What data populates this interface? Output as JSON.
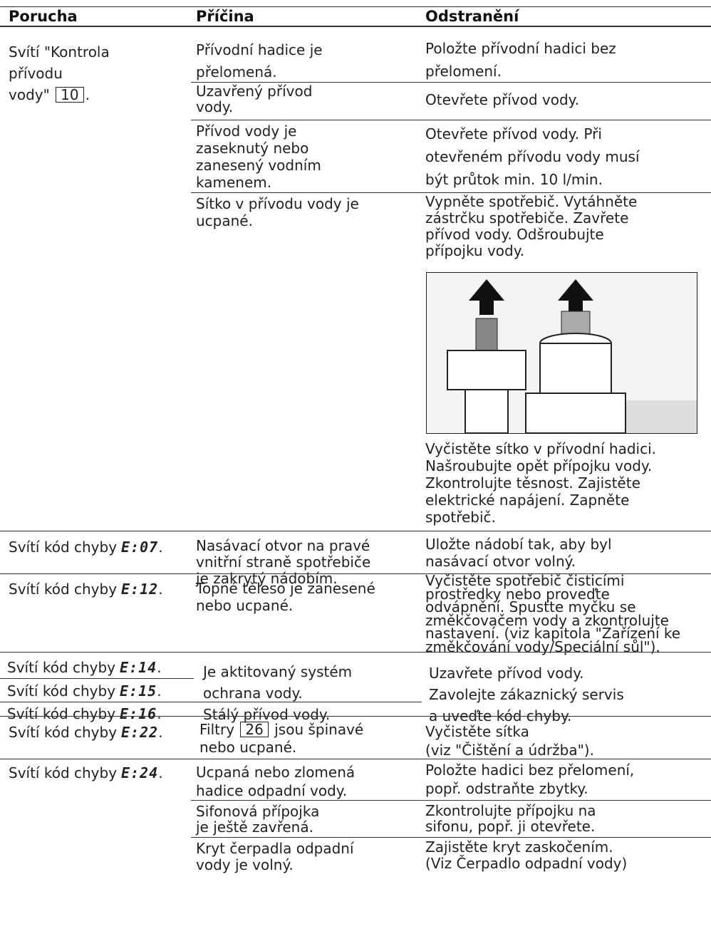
{
  "header": {
    "fault": "Porucha",
    "cause": "Příčina",
    "remedy": "Odstranění"
  },
  "rows": [
    {
      "fault": [
        "Svítí \"Kontrola",
        "přívodu",
        [
          "vody\"",
          "10",
          "."
        ]
      ],
      "causes": [
        {
          "cause": [
            "Přívodní hadice je",
            "přelomená."
          ],
          "remedy": [
            "Položte přívodní hadici bez",
            "přelomení."
          ]
        },
        {
          "cause": [
            "Uzavřený přívod",
            "vody."
          ],
          "remedy": [
            "Otevřete přívod vody."
          ]
        },
        {
          "cause": [
            "Přívod vody je",
            "zaseknutý nebo",
            "zanesený vodním",
            "kamenem."
          ],
          "remedy": [
            "Otevřete přívod vody. Při",
            "otevřeném přívodu vody musí",
            "být průtok min. 10 l/min."
          ]
        },
        {
          "cause": [
            "Sítko v přívodu vody je",
            "ucpané."
          ],
          "remedy": [
            "Vypněte spotřebič. Vytáhněte",
            "zástrčku spotřebiče. Zavřete",
            "přívod vody. Odšroubujte",
            "přípojku vody."
          ],
          "remedy_after": [
            "Vyčistěte sítko v přívodní hadici.",
            "Našroubujte opět přípojku vody.",
            "Zkontrolujte těsnost. Zajistěte",
            "elektrické napájení. Zapněte",
            "spotřebič."
          ]
        }
      ]
    },
    {
      "fault": [
        {
          "text": "Svítí kód chyby",
          "code": "E:07",
          "end": "."
        }
      ],
      "causes": [
        {
          "cause": [
            "Nasávací otvor na pravé",
            "vnitřní straně spotřebiče",
            "je zakrytý nádobím."
          ],
          "remedy": [
            "Uložte nádobí tak, aby byl",
            "nasávací otvor volný."
          ]
        }
      ]
    },
    {
      "fault": [
        {
          "text": "Svítí kód chyby",
          "code": "E:12",
          "end": "."
        }
      ],
      "causes": [
        {
          "cause": [
            "Topné těleso je zanesené",
            "nebo ucpané."
          ],
          "remedy": [
            "Vyčistěte spotřebič čisticími",
            "prostředky nebo proveďte",
            "odvápnění. Spusťte myčku se",
            "změkčovačem vody a zkontrolujte",
            "nastavení. (viz kapitola \"Zařízení ke",
            "změkčování vody/Speciální sůl\")."
          ]
        }
      ]
    },
    {
      "faults": [
        [
          {
            "text": "Svítí kód chyby",
            "code": "E:14",
            "end": "."
          }
        ],
        [
          {
            "text": "Svítí kód chyby",
            "code": "E:15",
            "end": "."
          }
        ],
        [
          {
            "text": "Svítí kód chyby",
            "code": "E:16",
            "end": "."
          }
        ]
      ],
      "causes": [
        {
          "cause": [
            "Je aktitovaný systém",
            "ochrana vody."
          ]
        },
        {
          "cause": [
            "Stálý přívod vody."
          ]
        }
      ],
      "remedy": [
        "Uzavřete přívod vody.",
        "Zavolejte zákaznický servis",
        "a uveďte kód chyby."
      ]
    },
    {
      "fault": [
        {
          "text": "Svítí kód chyby",
          "code": "E:22",
          "end": "."
        }
      ],
      "causes": [
        {
          "cause": [
            [
              "Filtry",
              "26",
              "jsou špinavé"
            ],
            "nebo ucpané."
          ],
          "remedy": [
            "Vyčistěte sítka",
            "(viz \"Čištění a údržba\")."
          ]
        }
      ]
    },
    {
      "fault": [
        {
          "text": "Svítí kód chyby",
          "code": "E:24",
          "end": "."
        }
      ],
      "causes": [
        {
          "cause": [
            "Ucpaná nebo zlomená",
            "hadice odpadní vody."
          ],
          "remedy": [
            "Položte hadici bez přelomení,",
            "popř. odstraňte zbytky."
          ]
        },
        {
          "cause": [
            "Sifonová přípojka",
            "je ještě zavřená."
          ],
          "remedy": [
            "Zkontrolujte přípojku na",
            "sifonu, popř. ji otevřete."
          ]
        },
        {
          "cause": [
            "Kryt čerpadla odpadní",
            "vody je volný."
          ],
          "remedy": [
            "Zajistěte kryt zaskočením.",
            "(Viz Čerpadlo odpadní vody)"
          ]
        }
      ]
    }
  ]
}
